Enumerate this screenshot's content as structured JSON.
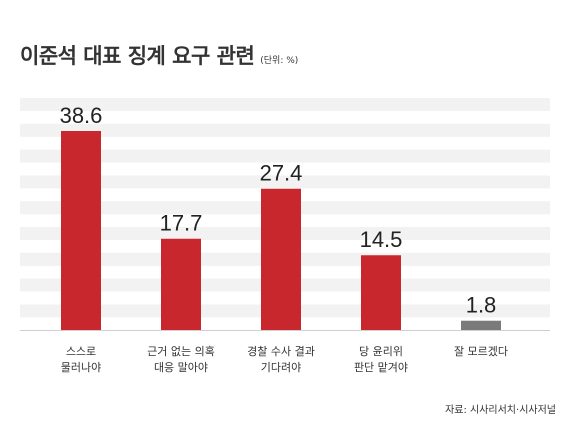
{
  "title": "이준석 대표 징계 요구 관련",
  "unit": "(단위: %)",
  "source": "자료: 시사리서치·시사저널",
  "colors": {
    "primary": "#c8282d",
    "neutral": "#7a7a7a",
    "band": "#f2f2f2"
  },
  "chart_data": {
    "type": "bar",
    "categories": [
      [
        "스스로",
        "물러나야"
      ],
      [
        "근거 없는 의혹",
        "대응 말아야"
      ],
      [
        "경찰 수사 결과",
        "기다려야"
      ],
      [
        "당 윤리위",
        "판단 맡겨야"
      ],
      [
        "잘 모르겠다"
      ]
    ],
    "values": [
      38.6,
      17.7,
      27.4,
      14.5,
      1.8
    ],
    "value_labels": [
      "38.6",
      "17.7",
      "27.4",
      "14.5",
      "1.8"
    ],
    "ylim": [
      0,
      45
    ],
    "grid": true,
    "legend": "none"
  }
}
